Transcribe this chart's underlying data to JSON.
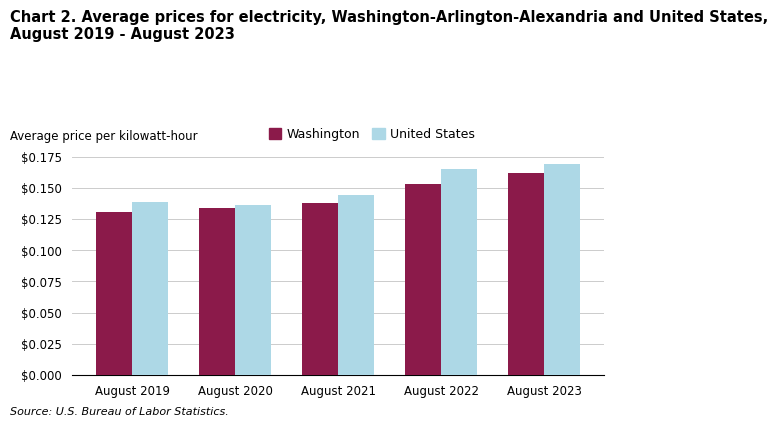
{
  "title_line1": "Chart 2. Average prices for electricity, Washington-Arlington-Alexandria and United States,",
  "title_line2": "August 2019 - August 2023",
  "ylabel_text": "Average price per kilowatt-hour",
  "source": "Source: U.S. Bureau of Labor Statistics.",
  "categories": [
    "August 2019",
    "August 2020",
    "August 2021",
    "August 2022",
    "August 2023"
  ],
  "washington": [
    0.131,
    0.134,
    0.138,
    0.153,
    0.162
  ],
  "united_states": [
    0.139,
    0.136,
    0.144,
    0.165,
    0.169
  ],
  "washington_color": "#8B1A4A",
  "us_color": "#ADD8E6",
  "washington_label": "Washington",
  "us_label": "United States",
  "ylim": [
    0,
    0.175
  ],
  "yticks": [
    0.0,
    0.025,
    0.05,
    0.075,
    0.1,
    0.125,
    0.15,
    0.175
  ],
  "bar_width": 0.35,
  "background_color": "#ffffff",
  "grid_color": "#cccccc",
  "title_fontsize": 10.5,
  "label_fontsize": 8.5,
  "tick_fontsize": 8.5,
  "legend_fontsize": 9,
  "source_fontsize": 8
}
